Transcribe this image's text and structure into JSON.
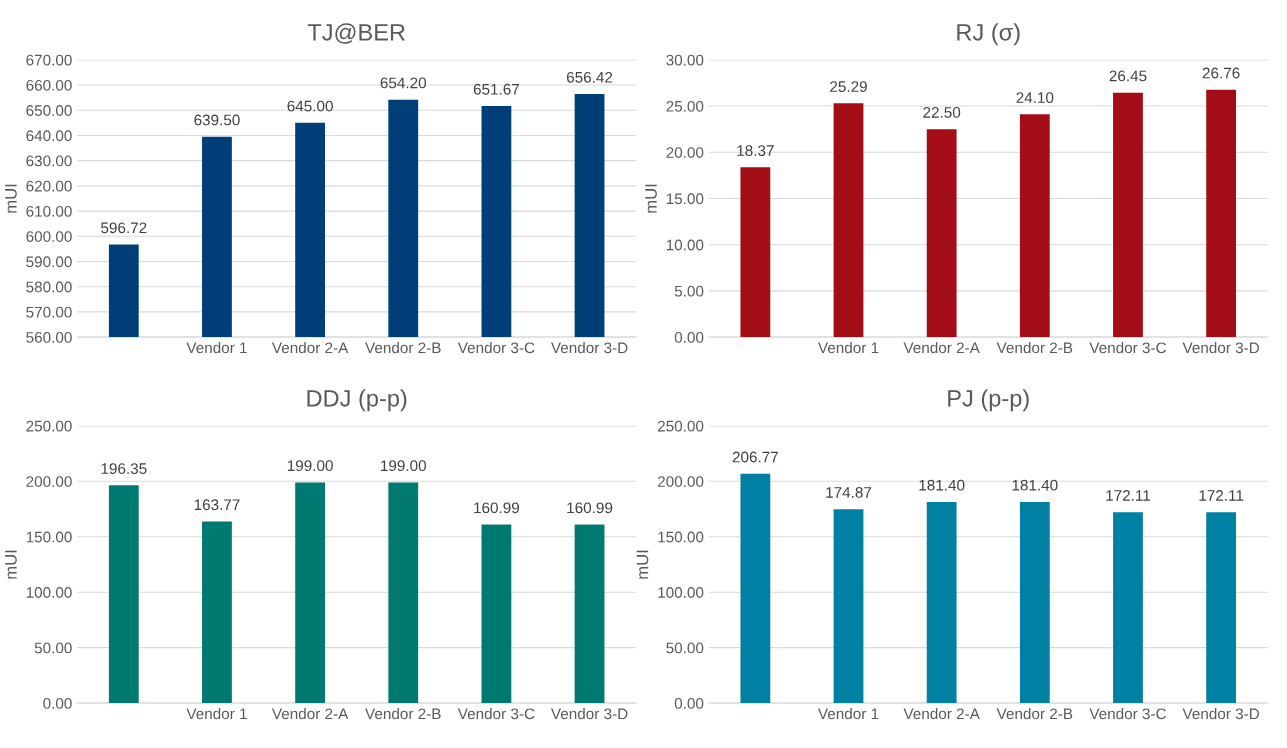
{
  "chart_data": [
    {
      "type": "bar",
      "title": "TJ@BER",
      "ylabel": "mUI",
      "categories": [
        null,
        "Vendor 1",
        "Vendor 2-A",
        "Vendor 2-B",
        "Vendor 3-C",
        "Vendor 3-D"
      ],
      "values": [
        596.72,
        639.5,
        645.0,
        654.2,
        651.67,
        656.42
      ],
      "value_labels": [
        "596.72",
        "639.50",
        "645.00",
        "654.20",
        "651.67",
        "656.42"
      ],
      "color": "#003e78",
      "ylim": [
        560,
        670
      ],
      "yticks": [
        {
          "value": 560,
          "label": "560.00"
        },
        {
          "value": 570,
          "label": "570.00"
        },
        {
          "value": 580,
          "label": "580.00"
        },
        {
          "value": 590,
          "label": "590.00"
        },
        {
          "value": 600,
          "label": "600.00"
        },
        {
          "value": 610,
          "label": "610.00"
        },
        {
          "value": 620,
          "label": "620.00"
        },
        {
          "value": 630,
          "label": "630.00"
        },
        {
          "value": 640,
          "label": "640.00"
        },
        {
          "value": 650,
          "label": "650.00"
        },
        {
          "value": 660,
          "label": "660.00"
        },
        {
          "value": 670,
          "label": "670.00"
        }
      ],
      "grid": "y"
    },
    {
      "type": "bar",
      "title": "RJ (σ)",
      "ylabel": "mUI",
      "categories": [
        null,
        "Vendor 1",
        "Vendor 2-A",
        "Vendor 2-B",
        "Vendor 3-C",
        "Vendor 3-D"
      ],
      "values": [
        18.37,
        25.29,
        22.5,
        24.1,
        26.45,
        26.76
      ],
      "value_labels": [
        "18.37",
        "25.29",
        "22.50",
        "24.10",
        "26.45",
        "26.76"
      ],
      "color": "#a20d16",
      "ylim": [
        0,
        30
      ],
      "yticks": [
        {
          "value": 0,
          "label": "0.00"
        },
        {
          "value": 5,
          "label": "5.00"
        },
        {
          "value": 10,
          "label": "10.00"
        },
        {
          "value": 15,
          "label": "15.00"
        },
        {
          "value": 20,
          "label": "20.00"
        },
        {
          "value": 25,
          "label": "25.00"
        },
        {
          "value": 30,
          "label": "30.00"
        }
      ],
      "grid": "y"
    },
    {
      "type": "bar",
      "title": "DDJ (p-p)",
      "ylabel": "mUI",
      "categories": [
        null,
        "Vendor 1",
        "Vendor 2-A",
        "Vendor 2-B",
        "Vendor 3-C",
        "Vendor 3-D"
      ],
      "values": [
        196.35,
        163.77,
        199.0,
        199.0,
        160.99,
        160.99
      ],
      "value_labels": [
        "196.35",
        "163.77",
        "199.00",
        "199.00",
        "160.99",
        "160.99"
      ],
      "color": "#007a70",
      "ylim": [
        0,
        250
      ],
      "yticks": [
        {
          "value": 0,
          "label": "0.00"
        },
        {
          "value": 50,
          "label": "50.00"
        },
        {
          "value": 100,
          "label": "100.00"
        },
        {
          "value": 150,
          "label": "150.00"
        },
        {
          "value": 200,
          "label": "200.00"
        },
        {
          "value": 250,
          "label": "250.00"
        }
      ],
      "grid": "y"
    },
    {
      "type": "bar",
      "title": "PJ (p-p)",
      "ylabel": "mUI",
      "categories": [
        null,
        "Vendor 1",
        "Vendor 2-A",
        "Vendor 2-B",
        "Vendor 3-C",
        "Vendor 3-D"
      ],
      "values": [
        206.77,
        174.87,
        181.4,
        181.4,
        172.11,
        172.11
      ],
      "value_labels": [
        "206.77",
        "174.87",
        "181.40",
        "181.40",
        "172.11",
        "172.11"
      ],
      "color": "#0081a3",
      "ylim": [
        0,
        250
      ],
      "yticks": [
        {
          "value": 0,
          "label": "0.00"
        },
        {
          "value": 50,
          "label": "50.00"
        },
        {
          "value": 100,
          "label": "100.00"
        },
        {
          "value": 150,
          "label": "150.00"
        },
        {
          "value": 200,
          "label": "200.00"
        },
        {
          "value": 250,
          "label": "250.00"
        }
      ],
      "grid": "y"
    }
  ]
}
